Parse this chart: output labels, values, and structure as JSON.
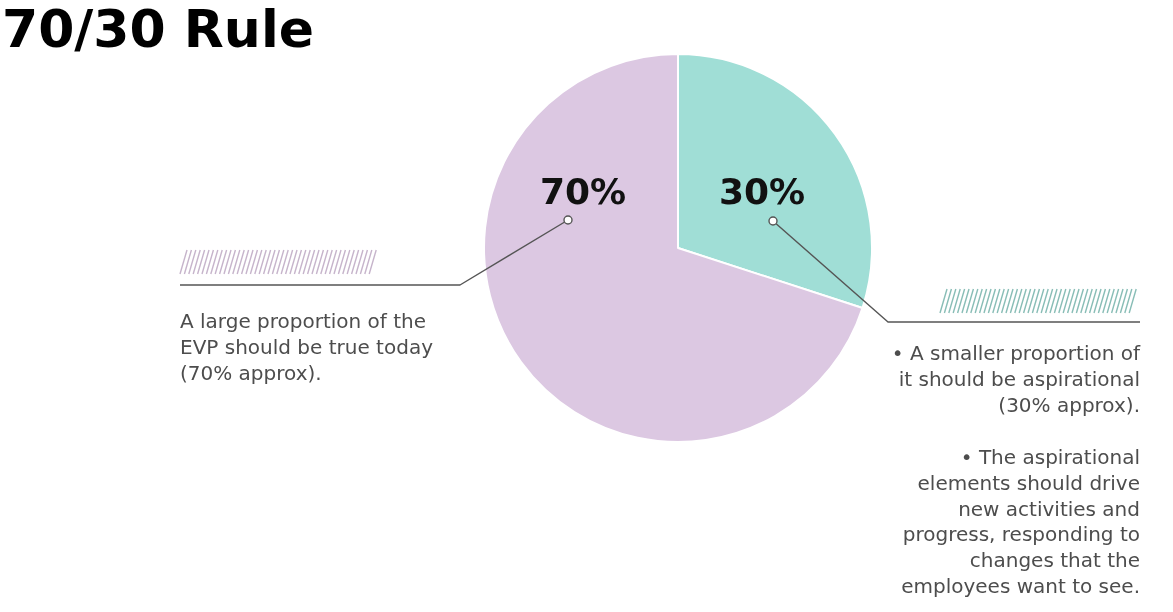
{
  "chart_data": {
    "type": "pie",
    "title": "70/30 Rule",
    "categories": [
      null,
      null
    ],
    "values": [
      30,
      70
    ],
    "colors": [
      "#a0ded6",
      "#dcc8e2"
    ],
    "value_labels": [
      "30%",
      "70%"
    ],
    "annotations": [
      "A large proportion of the EVP should be true today (70% approx).",
      "• A smaller proportion of it should be aspirational (30% approx).",
      "• The aspirational elements should drive new activities and progress, responding to changes that the employees want to see."
    ]
  }
}
